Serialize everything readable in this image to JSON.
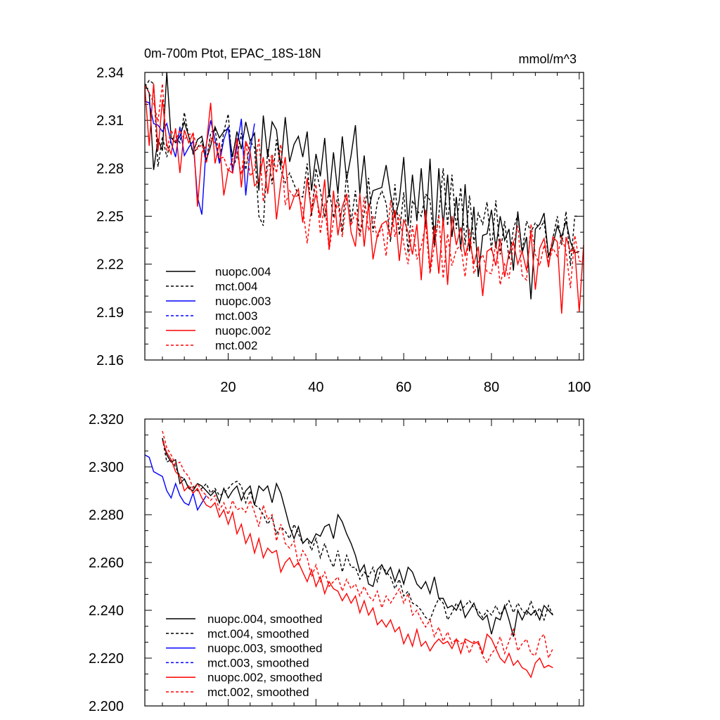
{
  "chart_data": [
    {
      "type": "line",
      "title": "0m-700m Ptot, EPAC_18S-18N",
      "units": "mmol/m^3",
      "xlim": [
        1,
        101
      ],
      "ylim": [
        2.16,
        2.34
      ],
      "xticks": [
        20,
        40,
        60,
        80,
        100
      ],
      "yticks": [
        2.16,
        2.19,
        2.22,
        2.25,
        2.28,
        2.31,
        2.34
      ],
      "ytick_labels": [
        "2.16",
        "2.19",
        "2.22",
        "2.25",
        "2.28",
        "2.31",
        "2.34"
      ],
      "legend_position": "bottom-left",
      "series": [
        {
          "name": "nuopc.004",
          "color": "#000000",
          "dash": "solid",
          "x_start": 1,
          "values": [
            2.333,
            2.327,
            2.279,
            2.298,
            2.291,
            2.34,
            2.299,
            2.296,
            2.3,
            2.309,
            2.3,
            2.29,
            2.298,
            2.3,
            2.285,
            2.294,
            2.306,
            2.299,
            2.303,
            2.305,
            2.287,
            2.303,
            2.292,
            2.309,
            2.297,
            2.302,
            2.266,
            2.313,
            2.287,
            2.309,
            2.304,
            2.281,
            2.312,
            2.284,
            2.295,
            2.3,
            2.287,
            2.303,
            2.266,
            2.289,
            2.275,
            2.299,
            2.262,
            2.29,
            2.264,
            2.3,
            2.273,
            2.288,
            2.307,
            2.264,
            2.288,
            2.254,
            2.266,
            2.267,
            2.268,
            2.282,
            2.264,
            2.249,
            2.26,
            2.287,
            2.244,
            2.276,
            2.247,
            2.28,
            2.243,
            2.286,
            2.232,
            2.28,
            2.244,
            2.276,
            2.237,
            2.262,
            2.229,
            2.27,
            2.228,
            2.256,
            2.212,
            2.238,
            2.239,
            2.254,
            2.23,
            2.25,
            2.235,
            2.242,
            2.216,
            2.253,
            2.227,
            2.237,
            2.198,
            2.242,
            2.245,
            2.252,
            2.225,
            2.232,
            2.244,
            2.237,
            2.247,
            2.234,
            2.227,
            2.228
          ]
        },
        {
          "name": "mct.004",
          "color": "#000000",
          "dash": "dashed",
          "x_start": 1,
          "values": [
            2.331,
            2.335,
            2.333,
            2.281,
            2.3,
            2.287,
            2.298,
            2.3,
            2.296,
            2.315,
            2.3,
            2.289,
            2.293,
            2.297,
            2.284,
            2.302,
            2.305,
            2.284,
            2.303,
            2.314,
            2.28,
            2.287,
            2.302,
            2.279,
            2.297,
            2.293,
            2.25,
            2.244,
            2.292,
            2.27,
            2.298,
            2.279,
            2.271,
            2.277,
            2.27,
            2.263,
            2.262,
            2.283,
            2.25,
            2.28,
            2.266,
            2.249,
            2.267,
            2.249,
            2.263,
            2.24,
            2.278,
            2.246,
            2.266,
            2.238,
            2.252,
            2.274,
            2.24,
            2.259,
            2.266,
            2.258,
            2.234,
            2.27,
            2.238,
            2.265,
            2.227,
            2.26,
            2.254,
            2.25,
            2.264,
            2.26,
            2.231,
            2.251,
            2.28,
            2.244,
            2.276,
            2.242,
            2.268,
            2.232,
            2.263,
            2.233,
            2.252,
            2.245,
            2.259,
            2.228,
            2.26,
            2.226,
            2.247,
            2.223,
            2.242,
            2.251,
            2.228,
            2.247,
            2.24,
            2.246,
            2.242,
            2.247,
            2.224,
            2.236,
            2.25,
            2.232,
            2.253,
            2.219,
            2.25,
            2.25
          ]
        },
        {
          "name": "nuopc.003",
          "color": "#0000ff",
          "dash": "solid",
          "x_start": 1,
          "values": [
            2.322,
            2.321,
            2.308,
            2.307,
            2.303,
            2.308,
            2.296,
            2.287,
            2.306,
            2.288,
            2.293,
            2.297,
            2.262,
            2.251,
            2.295,
            2.31,
            2.298,
            2.283,
            2.298,
            2.306,
            2.277,
            2.294,
            2.311,
            2.263,
            2.291,
            2.308
          ]
        },
        {
          "name": "mct.003",
          "color": "#0000ff",
          "dash": "dashed",
          "x_start": 1,
          "values": []
        },
        {
          "name": "nuopc.002",
          "color": "#ff0000",
          "dash": "solid",
          "x_start": 1,
          "values": [
            2.331,
            2.294,
            2.333,
            2.291,
            2.323,
            2.295,
            2.289,
            2.305,
            2.277,
            2.304,
            2.296,
            2.302,
            2.256,
            2.29,
            2.294,
            2.321,
            2.283,
            2.296,
            2.263,
            2.279,
            2.277,
            2.299,
            2.268,
            2.297,
            2.29,
            2.269,
            2.272,
            2.287,
            2.264,
            2.287,
            2.248,
            2.271,
            2.287,
            2.254,
            2.262,
            2.267,
            2.246,
            2.274,
            2.252,
            2.264,
            2.249,
            2.273,
            2.229,
            2.266,
            2.238,
            2.256,
            2.264,
            2.24,
            2.231,
            2.264,
            2.231,
            2.258,
            2.223,
            2.238,
            2.245,
            2.247,
            2.237,
            2.254,
            2.222,
            2.248,
            2.24,
            2.226,
            2.245,
            2.21,
            2.254,
            2.216,
            2.244,
            2.214,
            2.249,
            2.207,
            2.25,
            2.232,
            2.243,
            2.225,
            2.236,
            2.22,
            2.231,
            2.2,
            2.228,
            2.23,
            2.219,
            2.236,
            2.212,
            2.227,
            2.234,
            2.22,
            2.228,
            2.216,
            2.24,
            2.204,
            2.23,
            2.236,
            2.218,
            2.237,
            2.234,
            2.189,
            2.237,
            2.228,
            2.229,
            2.19,
            2.232
          ]
        },
        {
          "name": "mct.002",
          "color": "#ff0000",
          "dash": "dashed",
          "x_start": 1,
          "values": [
            2.332,
            2.327,
            2.321,
            2.309,
            2.333,
            2.291,
            2.304,
            2.297,
            2.304,
            2.298,
            2.301,
            2.302,
            2.292,
            2.295,
            2.283,
            2.299,
            2.296,
            2.286,
            2.287,
            2.278,
            2.286,
            2.29,
            2.276,
            2.297,
            2.275,
            2.279,
            2.299,
            2.259,
            2.281,
            2.289,
            2.277,
            2.295,
            2.257,
            2.266,
            2.262,
            2.263,
            2.255,
            2.233,
            2.256,
            2.27,
            2.239,
            2.258,
            2.229,
            2.247,
            2.259,
            2.237,
            2.262,
            2.244,
            2.253,
            2.237,
            2.262,
            2.241,
            2.25,
            2.236,
            2.244,
            2.225,
            2.26,
            2.237,
            2.251,
            2.233,
            2.22,
            2.244,
            2.223,
            2.231,
            2.245,
            2.214,
            2.232,
            2.251,
            2.211,
            2.239,
            2.219,
            2.229,
            2.232,
            2.212,
            2.242,
            2.214,
            2.221,
            2.226,
            2.215,
            2.214,
            2.234,
            2.207,
            2.22,
            2.211,
            2.233,
            2.244,
            2.213,
            2.21,
            2.245,
            2.226,
            2.219,
            2.232,
            2.221,
            2.23,
            2.225,
            2.237,
            2.228,
            2.205,
            2.238,
            2.222,
            2.221
          ]
        }
      ]
    },
    {
      "type": "line",
      "title": "",
      "xlim": [
        1,
        101
      ],
      "ylim": [
        2.2,
        2.32
      ],
      "xticks": [
        20,
        40,
        60,
        80,
        100
      ],
      "yticks": [
        2.2,
        2.22,
        2.24,
        2.26,
        2.28,
        2.3,
        2.32
      ],
      "ytick_labels": [
        "2.200",
        "2.220",
        "2.240",
        "2.260",
        "2.280",
        "2.300",
        "2.320"
      ],
      "legend_position": "bottom-left",
      "series": [
        {
          "name": "nuopc.004, smoothed",
          "color": "#000000",
          "dash": "solid",
          "x_start": 5,
          "values": [
            2.312,
            2.305,
            2.302,
            2.303,
            2.293,
            2.295,
            2.291,
            2.29,
            2.293,
            2.292,
            2.29,
            2.288,
            2.29,
            2.285,
            2.291,
            2.287,
            2.29,
            2.292,
            2.286,
            2.29,
            2.292,
            2.284,
            2.292,
            2.29,
            2.292,
            2.285,
            2.293,
            2.289,
            2.282,
            2.275,
            2.27,
            2.275,
            2.268,
            2.27,
            2.268,
            2.272,
            2.271,
            2.275,
            2.276,
            2.27,
            2.28,
            2.277,
            2.272,
            2.268,
            2.263,
            2.256,
            2.259,
            2.251,
            2.25,
            2.257,
            2.259,
            2.255,
            2.258,
            2.252,
            2.257,
            2.251,
            2.258,
            2.256,
            2.251,
            2.249,
            2.252,
            2.247,
            2.254,
            2.245,
            2.245,
            2.241,
            2.242,
            2.24,
            2.244,
            2.237,
            2.24,
            2.243,
            2.238,
            2.236,
            2.238,
            2.23,
            2.237,
            2.236,
            2.242,
            2.236,
            2.229,
            2.24,
            2.236,
            2.24,
            2.238,
            2.24,
            2.236,
            2.242,
            2.24,
            2.238
          ]
        },
        {
          "name": "mct.004, smoothed",
          "color": "#000000",
          "dash": "dashed",
          "x_start": 5,
          "values": [
            2.312,
            2.302,
            2.303,
            2.3,
            2.296,
            2.295,
            2.291,
            2.292,
            2.29,
            2.291,
            2.293,
            2.289,
            2.291,
            2.288,
            2.289,
            2.291,
            2.293,
            2.294,
            2.292,
            2.285,
            2.29,
            2.284,
            2.283,
            2.28,
            2.276,
            2.279,
            2.272,
            2.275,
            2.273,
            2.27,
            2.276,
            2.272,
            2.268,
            2.27,
            2.265,
            2.27,
            2.262,
            2.268,
            2.262,
            2.258,
            2.265,
            2.256,
            2.263,
            2.258,
            2.258,
            2.253,
            2.256,
            2.254,
            2.258,
            2.252,
            2.259,
            2.256,
            2.254,
            2.249,
            2.253,
            2.246,
            2.248,
            2.243,
            2.242,
            2.24,
            2.237,
            2.236,
            2.241,
            2.245,
            2.243,
            2.236,
            2.239,
            2.243,
            2.24,
            2.242,
            2.244,
            2.241,
            2.24,
            2.237,
            2.24,
            2.238,
            2.242,
            2.238,
            2.241,
            2.244,
            2.239,
            2.243,
            2.24,
            2.238,
            2.244,
            2.238,
            2.241,
            2.236,
            2.242,
            2.238
          ]
        },
        {
          "name": "nuopc.003, smoothed",
          "color": "#0000ff",
          "dash": "solid",
          "x_start": 1,
          "values": [
            2.305,
            2.304,
            2.298,
            2.297,
            2.296,
            2.29,
            2.287,
            2.293,
            2.288,
            2.285,
            2.284,
            2.289,
            2.282,
            2.285,
            2.288
          ]
        },
        {
          "name": "mct.003, smoothed",
          "color": "#0000ff",
          "dash": "dashed",
          "x_start": 1,
          "values": []
        },
        {
          "name": "nuopc.002, smoothed",
          "color": "#ff0000",
          "dash": "solid",
          "x_start": 5,
          "values": [
            2.311,
            2.306,
            2.303,
            2.298,
            2.296,
            2.29,
            2.292,
            2.289,
            2.291,
            2.287,
            2.284,
            2.283,
            2.285,
            2.279,
            2.282,
            2.276,
            2.281,
            2.272,
            2.276,
            2.268,
            2.272,
            2.264,
            2.27,
            2.262,
            2.266,
            2.264,
            2.265,
            2.256,
            2.26,
            2.262,
            2.258,
            2.26,
            2.256,
            2.252,
            2.257,
            2.25,
            2.254,
            2.247,
            2.252,
            2.249,
            2.248,
            2.244,
            2.247,
            2.243,
            2.246,
            2.239,
            2.244,
            2.238,
            2.241,
            2.234,
            2.236,
            2.233,
            2.236,
            2.231,
            2.233,
            2.226,
            2.23,
            2.225,
            2.232,
            2.225,
            2.227,
            2.223,
            2.226,
            2.228,
            2.226,
            2.227,
            2.224,
            2.228,
            2.222,
            2.228,
            2.227,
            2.226,
            2.227,
            2.222,
            2.23,
            2.228,
            2.224,
            2.22,
            2.218,
            2.222,
            2.217,
            2.219,
            2.216,
            2.215,
            2.212,
            2.218,
            2.22,
            2.216,
            2.217,
            2.216
          ]
        },
        {
          "name": "mct.002, smoothed",
          "color": "#ff0000",
          "dash": "dashed",
          "x_start": 5,
          "values": [
            2.315,
            2.308,
            2.305,
            2.301,
            2.302,
            2.298,
            2.296,
            2.291,
            2.293,
            2.29,
            2.288,
            2.286,
            2.288,
            2.282,
            2.285,
            2.28,
            2.286,
            2.282,
            2.283,
            2.281,
            2.286,
            2.281,
            2.275,
            2.284,
            2.278,
            2.28,
            2.269,
            2.276,
            2.268,
            2.266,
            2.269,
            2.259,
            2.265,
            2.262,
            2.254,
            2.259,
            2.252,
            2.256,
            2.25,
            2.252,
            2.254,
            2.248,
            2.253,
            2.249,
            2.251,
            2.246,
            2.25,
            2.246,
            2.244,
            2.248,
            2.241,
            2.246,
            2.243,
            2.246,
            2.249,
            2.243,
            2.247,
            2.238,
            2.24,
            2.236,
            2.233,
            2.236,
            2.229,
            2.233,
            2.227,
            2.231,
            2.226,
            2.228,
            2.226,
            2.227,
            2.222,
            2.227,
            2.226,
            2.221,
            2.218,
            2.222,
            2.224,
            2.229,
            2.222,
            2.227,
            2.232,
            2.223,
            2.226,
            2.228,
            2.222,
            2.221,
            2.228,
            2.23,
            2.22,
            2.224
          ]
        }
      ]
    }
  ]
}
